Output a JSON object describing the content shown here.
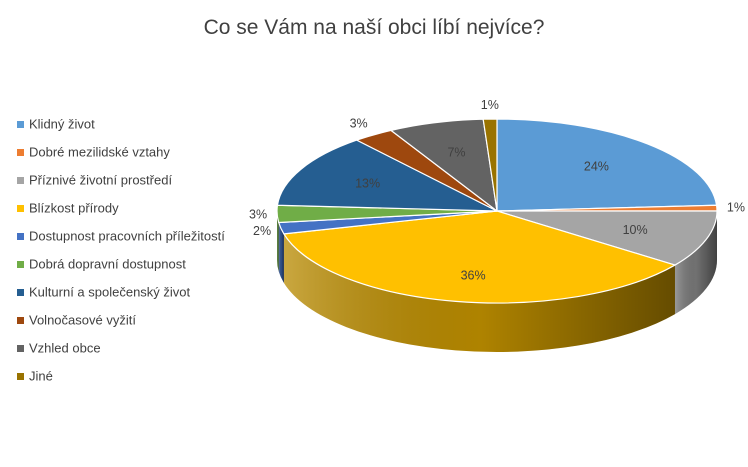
{
  "chart_data": {
    "type": "pie",
    "title": "Co se Vám na naší obci líbí nejvíce?",
    "categories": [
      "Klidný život",
      "Dobré mezilidské vztahy",
      "Příznivé životní prostředí",
      "Blízkost přírody",
      "Dostupnost pracovních příležitostí",
      "Dobrá dopravní dostupnost",
      "Kulturní a společenský život",
      "Volnočasové vyžití",
      "Vzhled obce",
      "Jiné"
    ],
    "values": [
      24,
      1,
      10,
      36,
      2,
      3,
      13,
      3,
      7,
      1
    ],
    "labels": [
      "24%",
      "1%",
      "10%",
      "36%",
      "2%",
      "3%",
      "13%",
      "3%",
      "7%",
      "1%"
    ],
    "colors": [
      "#5B9BD5",
      "#ED7D31",
      "#A5A5A5",
      "#FFC000",
      "#4472C4",
      "#70AD47",
      "#255E91",
      "#9E480E",
      "#636363",
      "#997300"
    ],
    "legend_position": "left",
    "style": "3d"
  }
}
